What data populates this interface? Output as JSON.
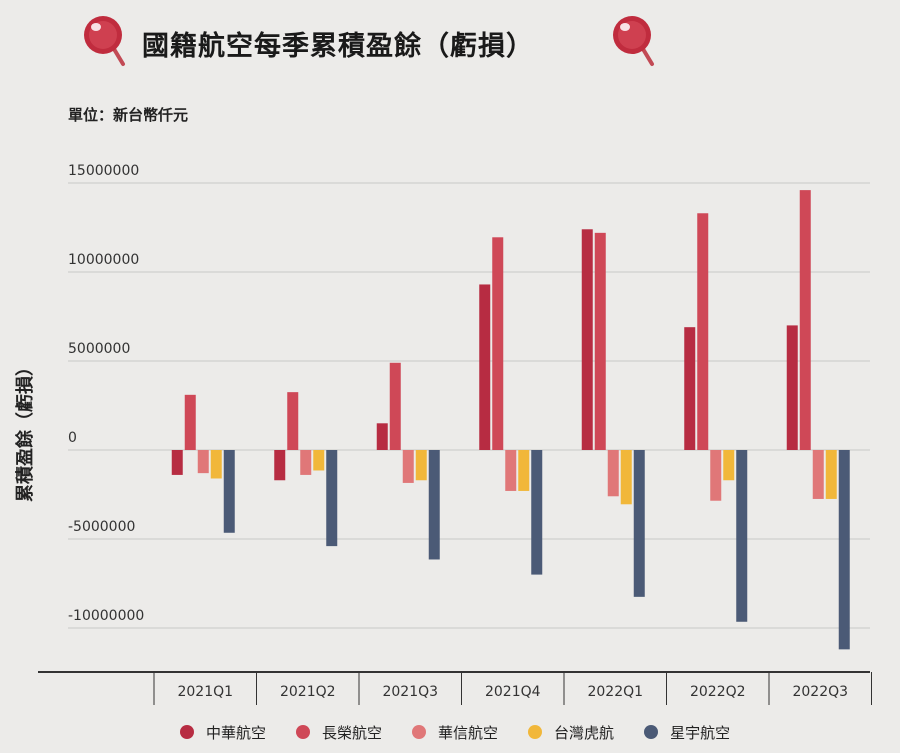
{
  "title": "國籍航空每季累積盈餘（虧損）",
  "unit_label": "單位：新台幣仟元",
  "chart_data": {
    "type": "bar",
    "title": "國籍航空每季累積盈餘（虧損）",
    "xlabel": "",
    "ylabel": "累積盈餘（虧損）",
    "ylim": [
      -12500000,
      15000000
    ],
    "yticks": [
      15000000,
      10000000,
      5000000,
      0,
      -5000000,
      -10000000
    ],
    "ytick_labels": [
      "15000000",
      "10000000",
      "5000000",
      "0",
      "-5000000",
      "-10000000"
    ],
    "grid": true,
    "legend_position": "bottom",
    "categories": [
      "2021Q1",
      "2021Q2",
      "2021Q3",
      "2021Q4",
      "2022Q1",
      "2022Q2",
      "2022Q3"
    ],
    "series": [
      {
        "name": "中華航空",
        "color": "#b72c42",
        "values": [
          -1400000,
          -1700000,
          1500000,
          9300000,
          12400000,
          6900000,
          7000000
        ]
      },
      {
        "name": "長榮航空",
        "color": "#cf4857",
        "values": [
          3100000,
          3250000,
          4900000,
          11950000,
          12200000,
          13300000,
          14600000
        ]
      },
      {
        "name": "華信航空",
        "color": "#e07778",
        "values": [
          -1300000,
          -1400000,
          -1850000,
          -2300000,
          -2600000,
          -2850000,
          -2750000
        ]
      },
      {
        "name": "台灣虎航",
        "color": "#f1b73a",
        "values": [
          -1600000,
          -1150000,
          -1700000,
          -2300000,
          -3050000,
          -1700000,
          -2750000
        ]
      },
      {
        "name": "星宇航空",
        "color": "#4b5a76",
        "values": [
          -4650000,
          -5400000,
          -6150000,
          -7000000,
          -8250000,
          -9650000,
          -11200000
        ]
      }
    ]
  }
}
